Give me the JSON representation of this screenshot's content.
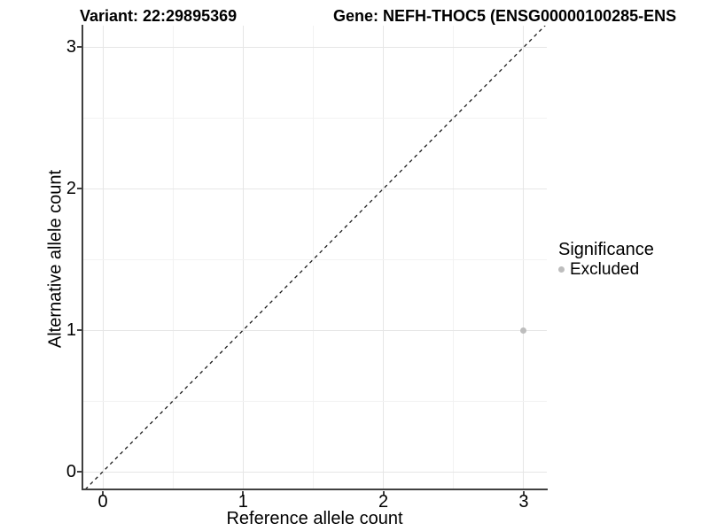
{
  "titles": {
    "variant": "Variant: 22:29895369",
    "gene": "Gene: NEFH-THOC5 (ENSG00000100285-ENS"
  },
  "chart_data": {
    "type": "scatter",
    "title_left": "Variant: 22:29895369",
    "title_right": "Gene: NEFH-THOC5 (ENSG00000100285-ENS",
    "xlabel": "Reference allele count",
    "ylabel": "Alternative allele count",
    "xlim": [
      0,
      3
    ],
    "ylim": [
      0,
      3
    ],
    "x_ticks": [
      0,
      1,
      2,
      3
    ],
    "y_ticks": [
      0,
      1,
      2,
      3
    ],
    "grid": "major and minor, light gray, on white panel",
    "reference_line": {
      "type": "identity y=x",
      "slope": 1,
      "intercept": 0,
      "style": "dashed",
      "color": "#1a1a1a"
    },
    "series": [
      {
        "name": "Excluded",
        "color": "#bdbdbd",
        "points": [
          {
            "x": 3,
            "y": 1
          }
        ]
      }
    ],
    "legend": {
      "title": "Significance",
      "position": "right",
      "entries": [
        {
          "label": "Excluded",
          "color": "#bdbdbd"
        }
      ]
    }
  },
  "colors": {
    "axis_line": "#404040",
    "grid_major": "#e6e6e6",
    "grid_minor": "#f2f2f2",
    "point": "#bdbdbd",
    "background": "#ffffff"
  }
}
